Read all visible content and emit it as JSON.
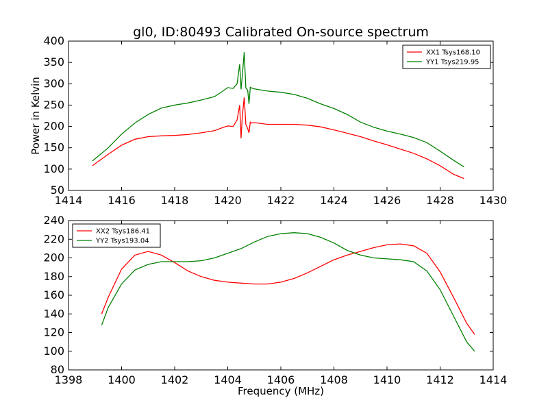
{
  "title": "gl0, ID:80493 Calibrated On-source spectrum",
  "chart_data": [
    {
      "type": "line",
      "ylabel": "Power in Kelvin",
      "xlabel": "",
      "xlim": [
        1414,
        1430
      ],
      "ylim": [
        50,
        400
      ],
      "xticks": [
        1414,
        1416,
        1418,
        1420,
        1422,
        1424,
        1426,
        1428,
        1430
      ],
      "yticks": [
        50,
        100,
        150,
        200,
        250,
        300,
        350,
        400
      ],
      "legend": "top-right",
      "series": [
        {
          "name": "XX1 Tsys168.10",
          "color": "#ff0000",
          "x": [
            1414.9,
            1415.5,
            1416,
            1416.5,
            1417,
            1417.5,
            1418,
            1418.5,
            1419,
            1419.5,
            1419.8,
            1420.0,
            1420.2,
            1420.35,
            1420.45,
            1420.5,
            1420.55,
            1420.62,
            1420.68,
            1420.75,
            1420.8,
            1420.85,
            1420.9,
            1421.0,
            1421.5,
            1422,
            1422.5,
            1423,
            1423.5,
            1424,
            1424.5,
            1425,
            1425.5,
            1426,
            1426.5,
            1427,
            1427.5,
            1428,
            1428.5,
            1428.9
          ],
          "values": [
            108,
            135,
            156,
            170,
            176,
            178,
            179,
            181,
            185,
            190,
            197,
            201,
            200,
            215,
            250,
            172,
            225,
            268,
            205,
            195,
            185,
            210,
            208,
            209,
            205,
            205,
            205,
            203,
            199,
            192,
            184,
            176,
            166,
            157,
            147,
            137,
            124,
            108,
            88,
            78
          ]
        },
        {
          "name": "YY1 Tsys219.95",
          "color": "#008000",
          "x": [
            1414.9,
            1415.5,
            1416,
            1416.5,
            1417,
            1417.5,
            1418,
            1418.5,
            1419,
            1419.5,
            1419.8,
            1420.0,
            1420.2,
            1420.35,
            1420.45,
            1420.5,
            1420.55,
            1420.62,
            1420.68,
            1420.75,
            1420.8,
            1420.85,
            1420.9,
            1421.0,
            1421.5,
            1422,
            1422.5,
            1423,
            1423.5,
            1424,
            1424.5,
            1425,
            1425.5,
            1426,
            1426.5,
            1427,
            1427.5,
            1428,
            1428.5,
            1428.9
          ],
          "values": [
            119,
            150,
            182,
            208,
            228,
            243,
            250,
            255,
            262,
            270,
            282,
            291,
            289,
            300,
            346,
            287,
            320,
            374,
            290,
            285,
            253,
            292,
            290,
            288,
            283,
            280,
            275,
            266,
            253,
            242,
            228,
            210,
            198,
            189,
            182,
            174,
            162,
            142,
            121,
            105
          ]
        }
      ]
    },
    {
      "type": "line",
      "ylabel": "",
      "xlabel": "Frequency (MHz)",
      "xlim": [
        1398,
        1414
      ],
      "ylim": [
        80,
        240
      ],
      "xticks": [
        1398,
        1400,
        1402,
        1404,
        1406,
        1408,
        1410,
        1412,
        1414
      ],
      "yticks": [
        80,
        100,
        120,
        140,
        160,
        180,
        200,
        220,
        240
      ],
      "legend": "top-left",
      "series": [
        {
          "name": "XX2 Tsys186.41",
          "color": "#ff0000",
          "x": [
            1399.25,
            1399.5,
            1400,
            1400.5,
            1401,
            1401.5,
            1402,
            1402.5,
            1403,
            1403.5,
            1404,
            1404.5,
            1405,
            1405.5,
            1406,
            1406.5,
            1407,
            1407.5,
            1408,
            1408.5,
            1409,
            1409.5,
            1410,
            1410.5,
            1411,
            1411.5,
            1412,
            1412.5,
            1413,
            1413.3
          ],
          "values": [
            140,
            158,
            188,
            203,
            207,
            203,
            195,
            186,
            180,
            176,
            174,
            173,
            172,
            172,
            174,
            178,
            184,
            191,
            198,
            203,
            207,
            211,
            214,
            215,
            213,
            205,
            185,
            158,
            130,
            118
          ]
        },
        {
          "name": "YY2 Tsys193.04",
          "color": "#008000",
          "x": [
            1399.25,
            1399.5,
            1400,
            1400.5,
            1401,
            1401.5,
            1402,
            1402.5,
            1403,
            1403.5,
            1404,
            1404.5,
            1405,
            1405.5,
            1406,
            1406.5,
            1407,
            1407.5,
            1408,
            1408.5,
            1409,
            1409.5,
            1410,
            1410.5,
            1411,
            1411.5,
            1412,
            1412.5,
            1413,
            1413.3
          ],
          "values": [
            128,
            147,
            172,
            187,
            193,
            196,
            196,
            196,
            197,
            200,
            205,
            210,
            217,
            223,
            226,
            227,
            226,
            222,
            216,
            208,
            203,
            200,
            199,
            198,
            196,
            186,
            166,
            138,
            110,
            100
          ]
        }
      ]
    }
  ]
}
